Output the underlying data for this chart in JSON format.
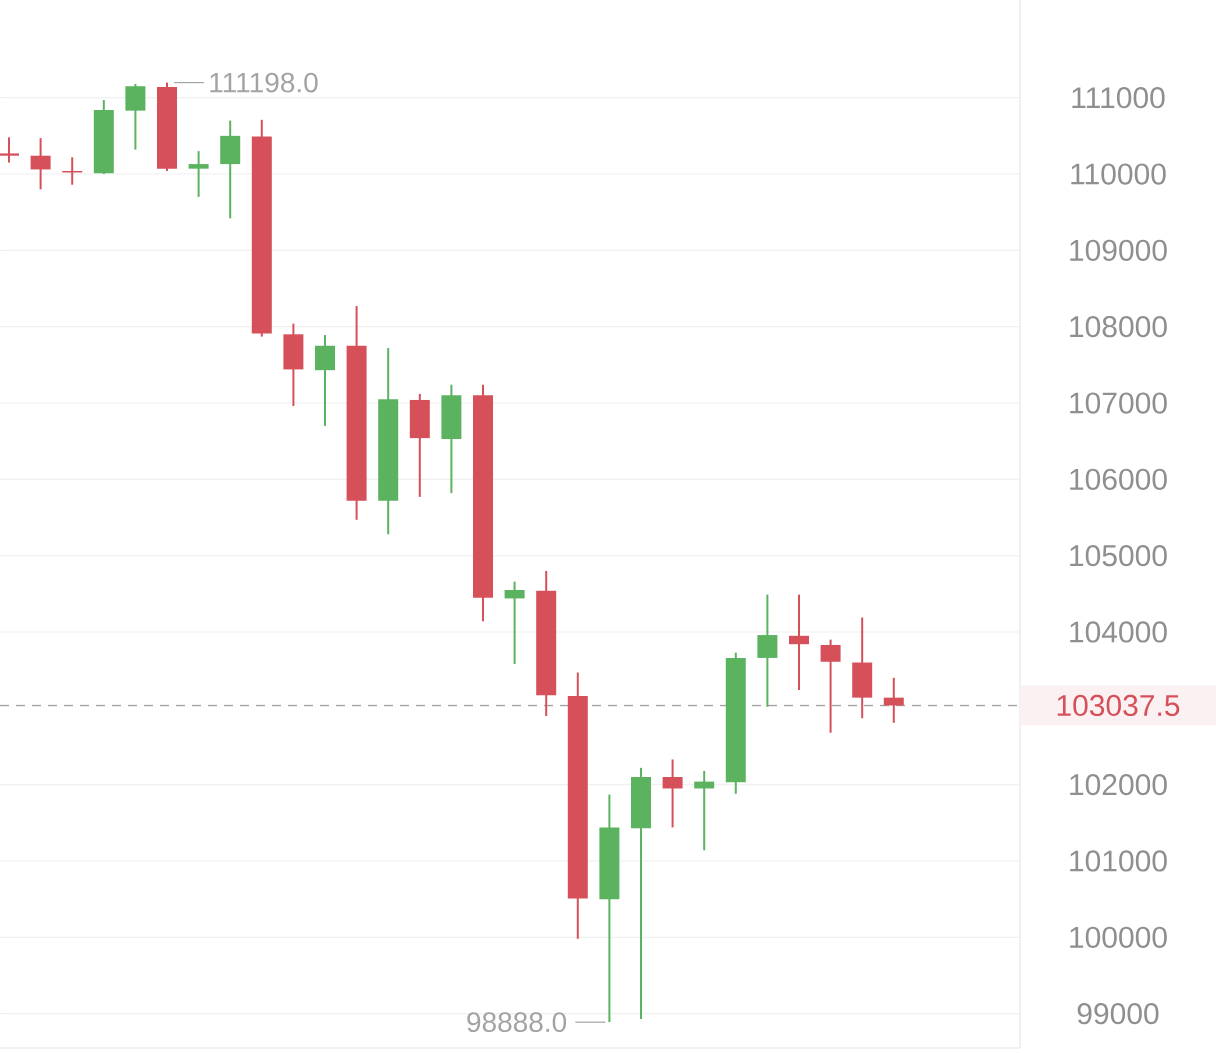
{
  "chart_data": {
    "type": "candlestick",
    "categories": [
      null,
      null,
      null,
      null,
      null,
      null,
      null,
      null,
      null,
      null,
      null,
      null,
      null,
      null,
      null,
      null,
      null,
      null,
      null,
      null,
      null,
      null,
      null,
      null,
      null,
      null,
      null,
      null,
      null
    ],
    "ohlc": [
      [
        110270,
        110480,
        110150,
        110240
      ],
      [
        110240,
        110470,
        109800,
        110060
      ],
      [
        110040,
        110220,
        109860,
        110020
      ],
      [
        110010,
        110970,
        110000,
        110840
      ],
      [
        110830,
        111180,
        110320,
        111150
      ],
      [
        111140,
        111198,
        110040,
        110070
      ],
      [
        110070,
        110300,
        109700,
        110130
      ],
      [
        110130,
        110700,
        109420,
        110500
      ],
      [
        110490,
        110710,
        107870,
        107910
      ],
      [
        107900,
        108040,
        106960,
        107440
      ],
      [
        107430,
        107890,
        106700,
        107750
      ],
      [
        107750,
        108270,
        105470,
        105720
      ],
      [
        105720,
        107720,
        105280,
        107050
      ],
      [
        107040,
        107120,
        105770,
        106540
      ],
      [
        106530,
        107240,
        105820,
        107100
      ],
      [
        107100,
        107240,
        104140,
        104450
      ],
      [
        104440,
        104660,
        103580,
        104550
      ],
      [
        104540,
        104800,
        102900,
        103170
      ],
      [
        103160,
        103470,
        99980,
        100510
      ],
      [
        100500,
        101870,
        98888,
        101440
      ],
      [
        101430,
        102220,
        98930,
        102100
      ],
      [
        102100,
        102330,
        101440,
        101950
      ],
      [
        101950,
        102180,
        101140,
        102040
      ],
      [
        102030,
        103730,
        101880,
        103660
      ],
      [
        103660,
        104490,
        103020,
        103960
      ],
      [
        103950,
        104490,
        103240,
        103840
      ],
      [
        103830,
        103900,
        102680,
        103610
      ],
      [
        103600,
        104190,
        102870,
        103140
      ],
      [
        103140,
        103400,
        102810,
        103037.5
      ]
    ],
    "colors": [
      "#d6505a",
      "#d6505a",
      "#d6505a",
      "#5bb35f",
      "#5bb35f",
      "#d6505a",
      "#5bb35f",
      "#5bb35f",
      "#d6505a",
      "#d6505a",
      "#5bb35f",
      "#d6505a",
      "#5bb35f",
      "#d6505a",
      "#5bb35f",
      "#d6505a",
      "#5bb35f",
      "#d6505a",
      "#d6505a",
      "#5bb35f",
      "#5bb35f",
      "#d6505a",
      "#5bb35f",
      "#5bb35f",
      "#5bb35f",
      "#d6505a",
      "#d6505a",
      "#d6505a",
      "#d6505a"
    ],
    "ylim": [
      98550,
      112280
    ],
    "yticks": [
      99000,
      100000,
      101000,
      102000,
      104000,
      105000,
      106000,
      107000,
      108000,
      109000,
      110000,
      111000
    ],
    "grid": "y",
    "tick_labels": "y",
    "annotations": [
      "111198.0",
      "98888.0"
    ],
    "ref_lines": [
      {
        "axis": "y",
        "value": 103037.5,
        "label": "103037.5",
        "color": "#a0a0a0",
        "line_style": "dashed"
      }
    ]
  }
}
